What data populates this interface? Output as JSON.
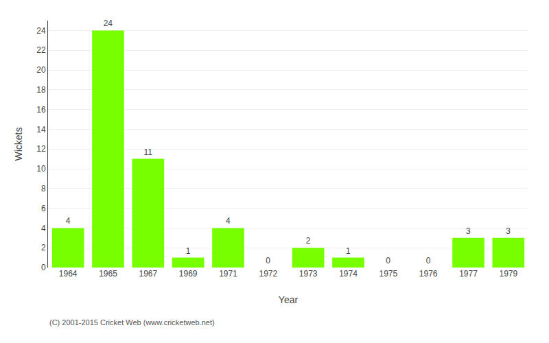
{
  "chart_data": {
    "type": "bar",
    "categories": [
      "1964",
      "1965",
      "1967",
      "1969",
      "1971",
      "1972",
      "1973",
      "1974",
      "1975",
      "1976",
      "1977",
      "1979"
    ],
    "values": [
      4,
      24,
      11,
      1,
      4,
      0,
      2,
      1,
      0,
      0,
      3,
      3
    ],
    "color": "#77ff00",
    "xlabel": "Year",
    "ylabel": "Wickets",
    "ylim": [
      0,
      25
    ],
    "yticks": [
      0,
      2,
      4,
      6,
      8,
      10,
      12,
      14,
      16,
      18,
      20,
      22,
      24
    ],
    "grid": true,
    "data_labels": true,
    "annotations": [
      "(C) 2001-2015 Cricket Web (www.cricketweb.net)"
    ]
  }
}
